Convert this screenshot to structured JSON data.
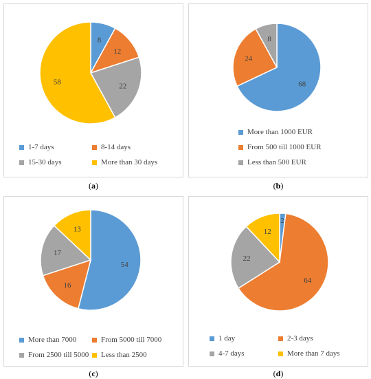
{
  "colors": {
    "blue": "#5B9BD5",
    "orange": "#ED7D31",
    "gray": "#A5A5A5",
    "yellow": "#FFC000"
  },
  "chart_data": [
    {
      "type": "pie",
      "caption": "a",
      "slices": [
        {
          "label": "1-7 days",
          "value": 8,
          "color": "#5B9BD5"
        },
        {
          "label": "8-14 days",
          "value": 12,
          "color": "#ED7D31"
        },
        {
          "label": "15-30 days",
          "value": 22,
          "color": "#A5A5A5"
        },
        {
          "label": "More than 30 days",
          "value": 58,
          "color": "#FFC000"
        }
      ],
      "legend_position": "bottom"
    },
    {
      "type": "pie",
      "caption": "b",
      "slices": [
        {
          "label": "More than 1000 EUR",
          "value": 68,
          "color": "#5B9BD5"
        },
        {
          "label": "From 500 till 1000 EUR",
          "value": 24,
          "color": "#ED7D31"
        },
        {
          "label": "Less than 500 EUR",
          "value": 8,
          "color": "#A5A5A5"
        }
      ],
      "legend_position": "bottom"
    },
    {
      "type": "pie",
      "caption": "c",
      "slices": [
        {
          "label": "More than 7000",
          "value": 54,
          "color": "#5B9BD5"
        },
        {
          "label": "From 5000 till 7000",
          "value": 16,
          "color": "#ED7D31"
        },
        {
          "label": "From 2500 till 5000",
          "value": 17,
          "color": "#A5A5A5"
        },
        {
          "label": "Less than 2500",
          "value": 13,
          "color": "#FFC000"
        }
      ],
      "legend_position": "bottom"
    },
    {
      "type": "pie",
      "caption": "d",
      "slices": [
        {
          "label": "1 day",
          "value": 2,
          "color": "#5B9BD5"
        },
        {
          "label": "2-3 days",
          "value": 64,
          "color": "#ED7D31"
        },
        {
          "label": "4-7 days",
          "value": 22,
          "color": "#A5A5A5"
        },
        {
          "label": "More than 7 days",
          "value": 12,
          "color": "#FFC000"
        }
      ],
      "legend_position": "bottom"
    }
  ]
}
